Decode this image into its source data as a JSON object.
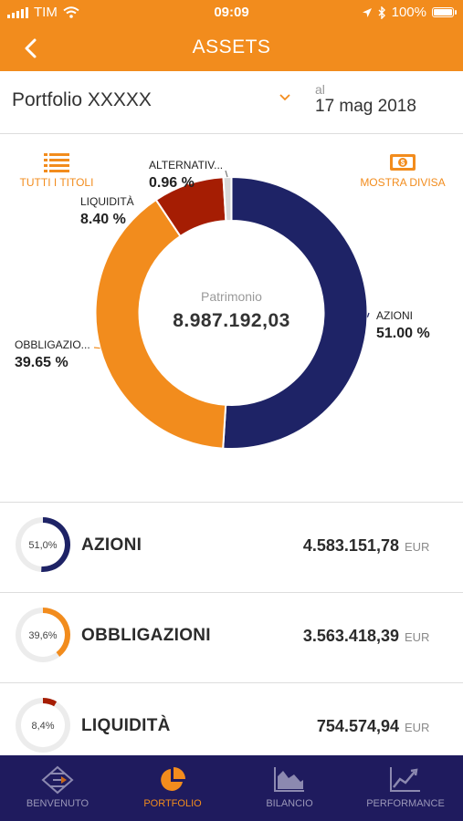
{
  "status_bar": {
    "carrier": "TIM",
    "time": "09:09",
    "battery": "100%"
  },
  "header": {
    "title": "ASSETS",
    "back_icon": "chevron-left-icon"
  },
  "portfolio": {
    "name": "Portfolio XXXXX",
    "date_label": "al",
    "date": "17 mag 2018"
  },
  "tools": {
    "left_label": "TUTTI I TITOLI",
    "left_icon": "list-icon",
    "right_label": "MOSTRA DIVISA",
    "right_icon": "banknote-icon"
  },
  "chart_data": {
    "type": "pie",
    "donut": true,
    "center_label": "Patrimonio",
    "center_value": "8.987.192,03",
    "slices": [
      {
        "label": "AZIONI",
        "pct_label": "51.00 %",
        "value": 51.0,
        "color": "#1e2366"
      },
      {
        "label": "OBBLIGAZIO...",
        "pct_label": "39.65 %",
        "value": 39.65,
        "color": "#f28c1d"
      },
      {
        "label": "LIQUIDITÀ",
        "pct_label": "8.40 %",
        "value": 8.4,
        "color": "#a51d03"
      },
      {
        "label": "ALTERNATIV...",
        "pct_label": "0.96 %",
        "value": 0.96,
        "color": "#d8d8d8"
      }
    ]
  },
  "assets": [
    {
      "name": "AZIONI",
      "pct_text": "51,0%",
      "pct": 51.0,
      "amount": "4.583.151,78",
      "currency": "EUR",
      "color": "#1e2366"
    },
    {
      "name": "OBBLIGAZIONI",
      "pct_text": "39,6%",
      "pct": 39.6,
      "amount": "3.563.418,39",
      "currency": "EUR",
      "color": "#f28c1d"
    },
    {
      "name": "LIQUIDITÀ",
      "pct_text": "8,4%",
      "pct": 8.4,
      "amount": "754.574,94",
      "currency": "EUR",
      "color": "#a51d03"
    }
  ],
  "tabs": [
    {
      "label": "BENVENUTO",
      "icon": "benvenuto-logo-icon",
      "active": false
    },
    {
      "label": "PORTFOLIO",
      "icon": "pie-chart-icon",
      "active": true
    },
    {
      "label": "BILANCIO",
      "icon": "area-chart-icon",
      "active": false
    },
    {
      "label": "PERFORMANCE",
      "icon": "line-chart-icon",
      "active": false
    }
  ]
}
